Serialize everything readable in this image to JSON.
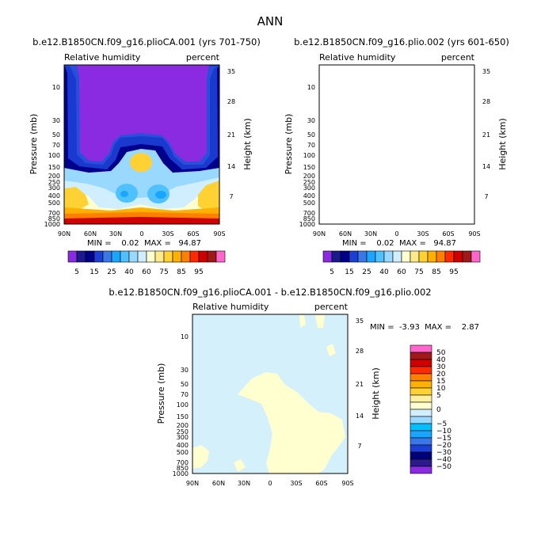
{
  "page_title": "ANN",
  "colors": {
    "rh_levels": [
      "#8a2be2",
      "#1a1a8c",
      "#00008b",
      "#1c3fd6",
      "#3a78e8",
      "#1aa6ff",
      "#4fc1ff",
      "#9ad9ff",
      "#cfeeff",
      "#ffffd0",
      "#ffe98a",
      "#ffd133",
      "#ffb000",
      "#ff7f00",
      "#ff2a00",
      "#d00000",
      "#a01818",
      "#ff66cc"
    ],
    "diff_levels": [
      "#8a2be2",
      "#2a1a8c",
      "#00007a",
      "#1c3fd6",
      "#3a78e8",
      "#1aa6ff",
      "#00bfff",
      "#9ad9ff",
      "#cfeeff",
      "#ffffd0",
      "#fff0a0",
      "#ffd133",
      "#ffb000",
      "#ff7f00",
      "#ff2a00",
      "#d00000",
      "#a01818",
      "#ff66cc"
    ]
  },
  "panels": [
    {
      "title": "b.e12.B1850CN.f09_g16.plioCA.001 (yrs 701-750)",
      "left_label": "Relative humidity",
      "right_label": "percent",
      "stats": "MIN =    0.02  MAX =   94.87"
    },
    {
      "title": "b.e12.B1850CN.f09_g16.plio.002 (yrs 601-650)",
      "left_label": "Relative humidity",
      "right_label": "percent",
      "stats": "MIN =    0.02  MAX =   94.87"
    },
    {
      "title": "b.e12.B1850CN.f09_g16.plioCA.001 - b.e12.B1850CN.f09_g16.plio.002",
      "left_label": "Relative humidity",
      "right_label": "percent",
      "stats": "MIN =  -3.93  MAX =    2.87"
    }
  ],
  "chart_data": [
    {
      "type": "heatmap",
      "title": "b.e12.B1850CN.f09_g16.plioCA.001 (yrs 701-750)",
      "field": "Relative humidity",
      "units": "percent",
      "xlabel": "",
      "ylabel": "Pressure (mb)",
      "y2label": "Height (km)",
      "x_ticks": [
        "90N",
        "60N",
        "30N",
        "0",
        "30S",
        "60S",
        "90S"
      ],
      "y_ticks": [
        "10",
        "30",
        "50",
        "70",
        "100",
        "150",
        "200",
        "250",
        "300",
        "400",
        "500",
        "700",
        "850",
        "1000"
      ],
      "y2_ticks": [
        "35",
        "28",
        "21",
        "14",
        "7"
      ],
      "colorbar_labels": [
        "5",
        "15",
        "25",
        "40",
        "60",
        "75",
        "85",
        "95"
      ],
      "min": 0.02,
      "max": 94.87
    },
    {
      "type": "heatmap",
      "title": "b.e12.B1850CN.f09_g16.plio.002 (yrs 601-650)",
      "field": "Relative humidity",
      "units": "percent",
      "xlabel": "",
      "ylabel": "Pressure (mb)",
      "y2label": "Height (km)",
      "x_ticks": [
        "90N",
        "60N",
        "30N",
        "0",
        "30S",
        "60S",
        "90S"
      ],
      "y_ticks": [
        "10",
        "30",
        "50",
        "70",
        "100",
        "150",
        "200",
        "250",
        "300",
        "400",
        "500",
        "700",
        "850",
        "1000"
      ],
      "y2_ticks": [
        "35",
        "28",
        "21",
        "14",
        "7"
      ],
      "colorbar_labels": [
        "5",
        "15",
        "25",
        "40",
        "60",
        "75",
        "85",
        "95"
      ],
      "min": 0.02,
      "max": 94.87
    },
    {
      "type": "heatmap",
      "title": "b.e12.B1850CN.f09_g16.plioCA.001 - b.e12.B1850CN.f09_g16.plio.002",
      "field": "Relative humidity",
      "units": "percent",
      "xlabel": "",
      "ylabel": "Pressure (mb)",
      "y2label": "Height (km)",
      "x_ticks": [
        "90N",
        "60N",
        "30N",
        "0",
        "30S",
        "60S",
        "90S"
      ],
      "y_ticks": [
        "10",
        "30",
        "50",
        "70",
        "100",
        "150",
        "200",
        "250",
        "300",
        "400",
        "500",
        "700",
        "850",
        "1000"
      ],
      "y2_ticks": [
        "35",
        "28",
        "21",
        "14",
        "7"
      ],
      "colorbar_labels": [
        "50",
        "40",
        "30",
        "20",
        "15",
        "10",
        "5",
        "0",
        "−5",
        "−10",
        "−15",
        "−20",
        "−30",
        "−40",
        "−50"
      ],
      "min": -3.93,
      "max": 2.87
    }
  ]
}
